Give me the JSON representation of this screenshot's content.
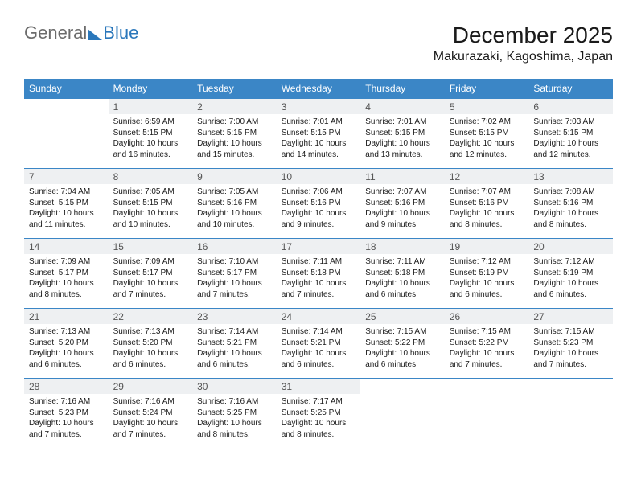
{
  "logo": {
    "text1": "General",
    "text2": "Blue"
  },
  "title": "December 2025",
  "location": "Makurazaki, Kagoshima, Japan",
  "colors": {
    "header_bg": "#3b86c6",
    "header_text": "#ffffff",
    "daynum_bg": "#eef0f2",
    "daynum_text": "#555555",
    "row_border": "#3b86c6",
    "body_text": "#1a1a1a",
    "logo_gray": "#6b6b6b",
    "logo_blue": "#2a77bb"
  },
  "daysOfWeek": [
    "Sunday",
    "Monday",
    "Tuesday",
    "Wednesday",
    "Thursday",
    "Friday",
    "Saturday"
  ],
  "weeks": [
    {
      "nums": [
        "",
        "1",
        "2",
        "3",
        "4",
        "5",
        "6"
      ],
      "cells": [
        {
          "empty": true
        },
        {
          "sunrise": "Sunrise: 6:59 AM",
          "sunset": "Sunset: 5:15 PM",
          "day1": "Daylight: 10 hours",
          "day2": "and 16 minutes."
        },
        {
          "sunrise": "Sunrise: 7:00 AM",
          "sunset": "Sunset: 5:15 PM",
          "day1": "Daylight: 10 hours",
          "day2": "and 15 minutes."
        },
        {
          "sunrise": "Sunrise: 7:01 AM",
          "sunset": "Sunset: 5:15 PM",
          "day1": "Daylight: 10 hours",
          "day2": "and 14 minutes."
        },
        {
          "sunrise": "Sunrise: 7:01 AM",
          "sunset": "Sunset: 5:15 PM",
          "day1": "Daylight: 10 hours",
          "day2": "and 13 minutes."
        },
        {
          "sunrise": "Sunrise: 7:02 AM",
          "sunset": "Sunset: 5:15 PM",
          "day1": "Daylight: 10 hours",
          "day2": "and 12 minutes."
        },
        {
          "sunrise": "Sunrise: 7:03 AM",
          "sunset": "Sunset: 5:15 PM",
          "day1": "Daylight: 10 hours",
          "day2": "and 12 minutes."
        }
      ]
    },
    {
      "nums": [
        "7",
        "8",
        "9",
        "10",
        "11",
        "12",
        "13"
      ],
      "cells": [
        {
          "sunrise": "Sunrise: 7:04 AM",
          "sunset": "Sunset: 5:15 PM",
          "day1": "Daylight: 10 hours",
          "day2": "and 11 minutes."
        },
        {
          "sunrise": "Sunrise: 7:05 AM",
          "sunset": "Sunset: 5:15 PM",
          "day1": "Daylight: 10 hours",
          "day2": "and 10 minutes."
        },
        {
          "sunrise": "Sunrise: 7:05 AM",
          "sunset": "Sunset: 5:16 PM",
          "day1": "Daylight: 10 hours",
          "day2": "and 10 minutes."
        },
        {
          "sunrise": "Sunrise: 7:06 AM",
          "sunset": "Sunset: 5:16 PM",
          "day1": "Daylight: 10 hours",
          "day2": "and 9 minutes."
        },
        {
          "sunrise": "Sunrise: 7:07 AM",
          "sunset": "Sunset: 5:16 PM",
          "day1": "Daylight: 10 hours",
          "day2": "and 9 minutes."
        },
        {
          "sunrise": "Sunrise: 7:07 AM",
          "sunset": "Sunset: 5:16 PM",
          "day1": "Daylight: 10 hours",
          "day2": "and 8 minutes."
        },
        {
          "sunrise": "Sunrise: 7:08 AM",
          "sunset": "Sunset: 5:16 PM",
          "day1": "Daylight: 10 hours",
          "day2": "and 8 minutes."
        }
      ]
    },
    {
      "nums": [
        "14",
        "15",
        "16",
        "17",
        "18",
        "19",
        "20"
      ],
      "cells": [
        {
          "sunrise": "Sunrise: 7:09 AM",
          "sunset": "Sunset: 5:17 PM",
          "day1": "Daylight: 10 hours",
          "day2": "and 8 minutes."
        },
        {
          "sunrise": "Sunrise: 7:09 AM",
          "sunset": "Sunset: 5:17 PM",
          "day1": "Daylight: 10 hours",
          "day2": "and 7 minutes."
        },
        {
          "sunrise": "Sunrise: 7:10 AM",
          "sunset": "Sunset: 5:17 PM",
          "day1": "Daylight: 10 hours",
          "day2": "and 7 minutes."
        },
        {
          "sunrise": "Sunrise: 7:11 AM",
          "sunset": "Sunset: 5:18 PM",
          "day1": "Daylight: 10 hours",
          "day2": "and 7 minutes."
        },
        {
          "sunrise": "Sunrise: 7:11 AM",
          "sunset": "Sunset: 5:18 PM",
          "day1": "Daylight: 10 hours",
          "day2": "and 6 minutes."
        },
        {
          "sunrise": "Sunrise: 7:12 AM",
          "sunset": "Sunset: 5:19 PM",
          "day1": "Daylight: 10 hours",
          "day2": "and 6 minutes."
        },
        {
          "sunrise": "Sunrise: 7:12 AM",
          "sunset": "Sunset: 5:19 PM",
          "day1": "Daylight: 10 hours",
          "day2": "and 6 minutes."
        }
      ]
    },
    {
      "nums": [
        "21",
        "22",
        "23",
        "24",
        "25",
        "26",
        "27"
      ],
      "cells": [
        {
          "sunrise": "Sunrise: 7:13 AM",
          "sunset": "Sunset: 5:20 PM",
          "day1": "Daylight: 10 hours",
          "day2": "and 6 minutes."
        },
        {
          "sunrise": "Sunrise: 7:13 AM",
          "sunset": "Sunset: 5:20 PM",
          "day1": "Daylight: 10 hours",
          "day2": "and 6 minutes."
        },
        {
          "sunrise": "Sunrise: 7:14 AM",
          "sunset": "Sunset: 5:21 PM",
          "day1": "Daylight: 10 hours",
          "day2": "and 6 minutes."
        },
        {
          "sunrise": "Sunrise: 7:14 AM",
          "sunset": "Sunset: 5:21 PM",
          "day1": "Daylight: 10 hours",
          "day2": "and 6 minutes."
        },
        {
          "sunrise": "Sunrise: 7:15 AM",
          "sunset": "Sunset: 5:22 PM",
          "day1": "Daylight: 10 hours",
          "day2": "and 6 minutes."
        },
        {
          "sunrise": "Sunrise: 7:15 AM",
          "sunset": "Sunset: 5:22 PM",
          "day1": "Daylight: 10 hours",
          "day2": "and 7 minutes."
        },
        {
          "sunrise": "Sunrise: 7:15 AM",
          "sunset": "Sunset: 5:23 PM",
          "day1": "Daylight: 10 hours",
          "day2": "and 7 minutes."
        }
      ]
    },
    {
      "nums": [
        "28",
        "29",
        "30",
        "31",
        "",
        "",
        ""
      ],
      "cells": [
        {
          "sunrise": "Sunrise: 7:16 AM",
          "sunset": "Sunset: 5:23 PM",
          "day1": "Daylight: 10 hours",
          "day2": "and 7 minutes."
        },
        {
          "sunrise": "Sunrise: 7:16 AM",
          "sunset": "Sunset: 5:24 PM",
          "day1": "Daylight: 10 hours",
          "day2": "and 7 minutes."
        },
        {
          "sunrise": "Sunrise: 7:16 AM",
          "sunset": "Sunset: 5:25 PM",
          "day1": "Daylight: 10 hours",
          "day2": "and 8 minutes."
        },
        {
          "sunrise": "Sunrise: 7:17 AM",
          "sunset": "Sunset: 5:25 PM",
          "day1": "Daylight: 10 hours",
          "day2": "and 8 minutes."
        },
        {
          "empty": true
        },
        {
          "empty": true
        },
        {
          "empty": true
        }
      ]
    }
  ]
}
